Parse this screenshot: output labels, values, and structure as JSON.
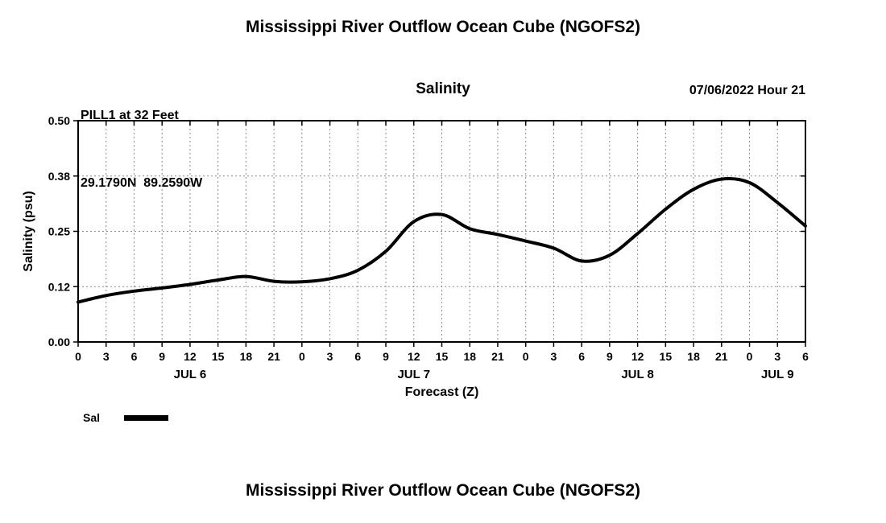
{
  "page": {
    "title_top": "Mississippi River Outflow Ocean Cube (NGOFS2)",
    "title_bottom": "Mississippi River Outflow Ocean Cube (NGOFS2)"
  },
  "header": {
    "station": "PILL1 at 32 Feet",
    "coordinates": "29.1790N  89.2590W",
    "plot_title": "Salinity",
    "datetime": "07/06/2022 Hour 21"
  },
  "chart_data": {
    "type": "line",
    "title": "Salinity",
    "xlabel": "Forecast (Z)",
    "ylabel": "Salinity (psu)",
    "ylim": [
      0.0,
      0.5
    ],
    "yticks": [
      0.0,
      0.125,
      0.25,
      0.375,
      0.5
    ],
    "ytick_labels": [
      "0.00",
      "0.12",
      "0.25",
      "0.38",
      "0.50"
    ],
    "x_start_hour": 0,
    "x_end_hour": 78,
    "xtick_interval_hours": 3,
    "xtick_labels": [
      "0",
      "3",
      "6",
      "9",
      "12",
      "15",
      "18",
      "21",
      "0",
      "3",
      "6",
      "9",
      "12",
      "15",
      "18",
      "21",
      "0",
      "3",
      "6",
      "9",
      "12",
      "15",
      "18",
      "21",
      "0",
      "3",
      "6"
    ],
    "day_labels": [
      {
        "label": "JUL 6",
        "hour": 12
      },
      {
        "label": "JUL 7",
        "hour": 36
      },
      {
        "label": "JUL 8",
        "hour": 60
      },
      {
        "label": "JUL 9",
        "hour": 75
      }
    ],
    "legend_label": "Sal",
    "line_color": "#000000",
    "grid": true,
    "series": [
      {
        "name": "Sal",
        "x_hours": [
          0,
          3,
          6,
          9,
          12,
          15,
          18,
          21,
          24,
          27,
          30,
          33,
          36,
          39,
          42,
          45,
          48,
          51,
          54,
          57,
          60,
          63,
          66,
          69,
          72,
          75,
          78
        ],
        "values": [
          0.09,
          0.105,
          0.115,
          0.122,
          0.13,
          0.14,
          0.148,
          0.137,
          0.136,
          0.143,
          0.162,
          0.205,
          0.272,
          0.288,
          0.256,
          0.243,
          0.228,
          0.212,
          0.183,
          0.196,
          0.245,
          0.3,
          0.345,
          0.368,
          0.36,
          0.315,
          0.262
        ]
      }
    ]
  }
}
